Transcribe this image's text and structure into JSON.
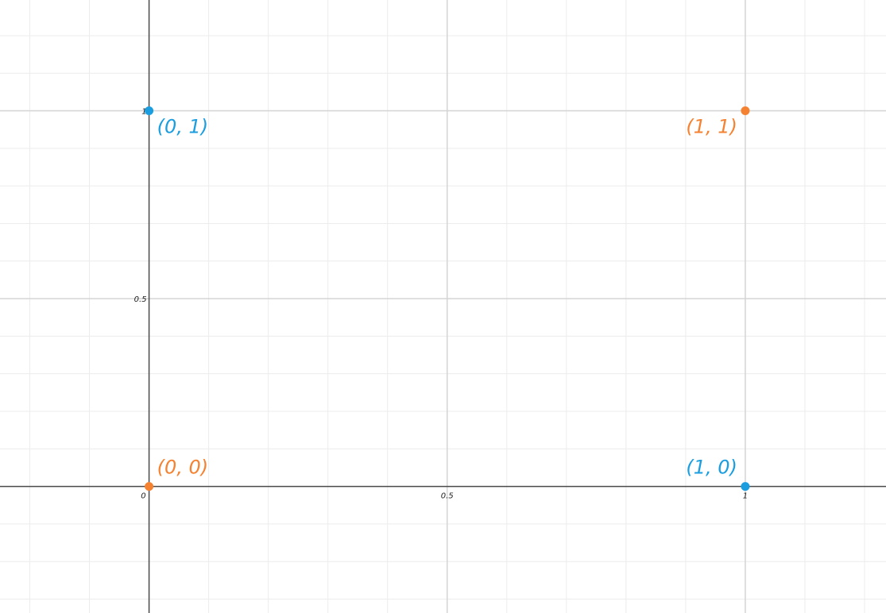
{
  "chart_data": {
    "type": "scatter",
    "title": "",
    "xlabel": "",
    "ylabel": "",
    "xlim": [
      -0.25,
      1.236
    ],
    "ylim": [
      -0.337,
      1.295
    ],
    "grid": true,
    "x_ticks": [
      {
        "value": 0,
        "label": "0"
      },
      {
        "value": 0.5,
        "label": "0.5"
      },
      {
        "value": 1,
        "label": "1"
      }
    ],
    "y_ticks": [
      {
        "value": 0.5,
        "label": "0.5"
      },
      {
        "value": 1,
        "label": "1"
      }
    ],
    "series": [
      {
        "color": "#f58231",
        "points": [
          {
            "x": 0,
            "y": 0,
            "label": "(0, 0)"
          },
          {
            "x": 1,
            "y": 1,
            "label": "(1, 1)"
          }
        ]
      },
      {
        "color": "#1a9ee0",
        "points": [
          {
            "x": 0,
            "y": 1,
            "label": "(0, 1)"
          },
          {
            "x": 1,
            "y": 0,
            "label": "(1, 0)"
          }
        ]
      }
    ]
  }
}
